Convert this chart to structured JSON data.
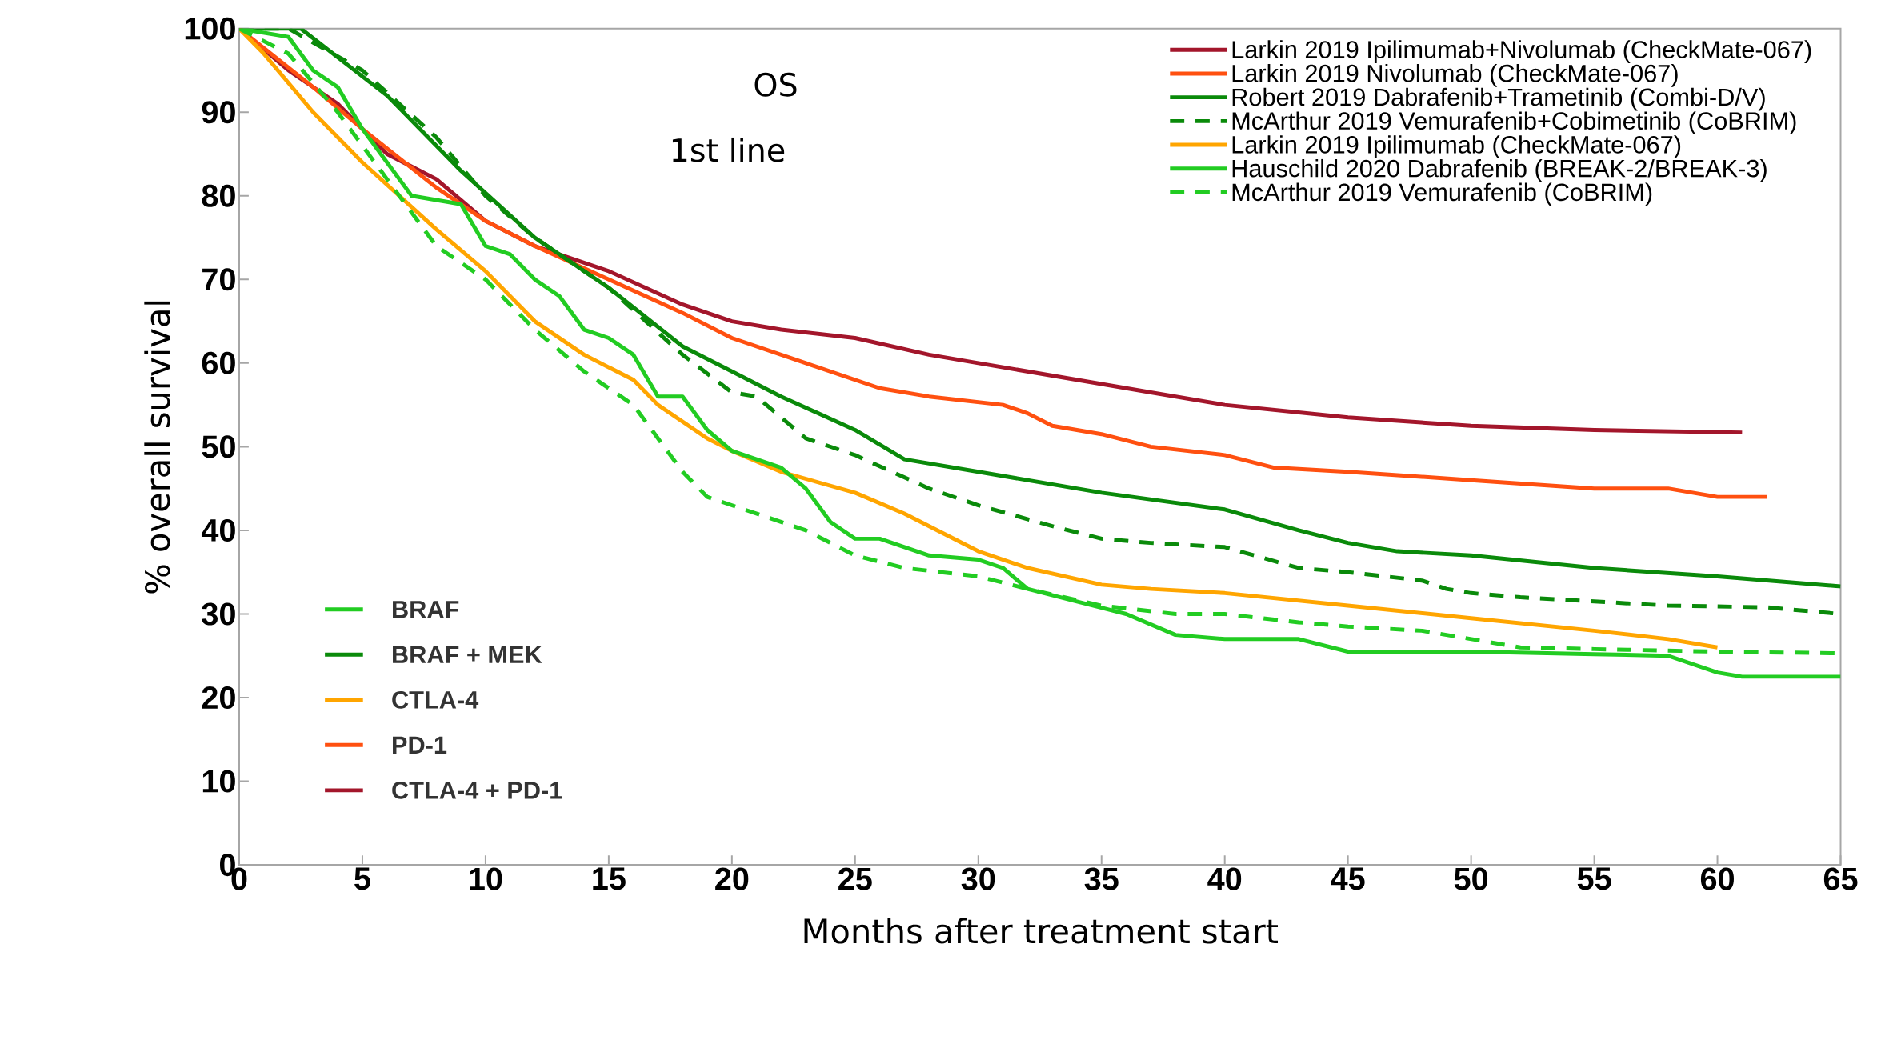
{
  "chart_data": {
    "type": "line",
    "xlabel": "Months after treatment start",
    "ylabel": "% overall survival",
    "xlim": [
      0,
      65
    ],
    "ylim": [
      0,
      100
    ],
    "xticks": [
      0,
      5,
      10,
      15,
      20,
      25,
      30,
      35,
      40,
      45,
      50,
      55,
      60,
      65
    ],
    "yticks": [
      0,
      10,
      20,
      30,
      40,
      50,
      60,
      70,
      80,
      90,
      100
    ],
    "grid": false,
    "legend": "top right",
    "marker": "none",
    "annotations": [
      "OS",
      "1st line",
      "BRAF",
      "BRAF + MEK",
      "CTLA-4",
      "PD-1",
      "CTLA-4 + PD-1"
    ],
    "series": [
      {
        "name": "Larkin 2019 Ipilimumab+Nivolumab (CheckMate-067)",
        "color": "#a3162b",
        "line_style": "solid",
        "x": [
          0,
          2,
          4,
          6,
          8,
          10,
          12,
          15,
          18,
          20,
          22,
          25,
          28,
          30,
          35,
          37,
          40,
          45,
          50,
          55,
          61
        ],
        "values": [
          100,
          95,
          91,
          85,
          82,
          77,
          74,
          71,
          67,
          65,
          64,
          63,
          61,
          60,
          57.5,
          56.5,
          55,
          53.5,
          52.5,
          52,
          51.7
        ]
      },
      {
        "name": "Larkin 2019 Nivolumab (CheckMate-067)",
        "color": "#ff5010",
        "line_style": "solid",
        "x": [
          0,
          3,
          5,
          8,
          10,
          12,
          15,
          18,
          20,
          23,
          26,
          28,
          31,
          32,
          33,
          35,
          37,
          40,
          42,
          45,
          50,
          55,
          58,
          60,
          62
        ],
        "values": [
          100,
          93,
          88,
          81,
          77,
          74,
          70,
          66,
          63,
          60,
          57,
          56,
          55,
          54,
          52.5,
          51.5,
          50,
          49,
          47.5,
          47,
          46,
          45,
          45,
          44,
          44
        ]
      },
      {
        "name": "Robert 2019 Dabrafenib+Trametinib (Combi-D/V)",
        "color": "#0a8a0a",
        "line_style": "solid",
        "x": [
          0,
          2.5,
          6,
          9,
          12,
          15,
          18,
          20,
          22,
          25,
          27,
          30,
          35,
          40,
          43,
          45,
          47,
          50,
          55,
          60,
          65
        ],
        "values": [
          100,
          100,
          92,
          83,
          75,
          69,
          62,
          59,
          56,
          52,
          48.5,
          47,
          44.5,
          42.5,
          40,
          38.5,
          37.5,
          37,
          35.5,
          34.5,
          33.3
        ]
      },
      {
        "name": "McArthur 2019 Vemurafenib+Cobimetinib (CoBRIM)",
        "color": "#0a8a0a",
        "line_style": "dashed",
        "x": [
          0,
          2,
          5,
          8,
          10,
          12,
          15,
          18,
          20,
          21,
          23,
          25,
          28,
          30,
          33,
          35,
          37,
          40,
          43,
          45,
          48,
          49,
          50,
          52,
          55,
          58,
          62,
          65
        ],
        "values": [
          100,
          100,
          95,
          87,
          80,
          75,
          69,
          61,
          56.5,
          56,
          51,
          49,
          45,
          43,
          40.5,
          39,
          38.5,
          38,
          35.5,
          35,
          34,
          33,
          32.5,
          32,
          31.5,
          31,
          30.8,
          30
        ]
      },
      {
        "name": "Larkin 2019 Ipilimumab (CheckMate-067)",
        "color": "#ffa500",
        "line_style": "solid",
        "x": [
          0,
          1,
          3,
          5,
          8,
          10,
          12,
          14,
          16,
          17,
          19,
          20,
          22,
          25,
          27,
          30,
          32,
          35,
          37,
          40,
          45,
          50,
          55,
          58,
          60
        ],
        "values": [
          100,
          97,
          90,
          84,
          76,
          71,
          65,
          61,
          58,
          55,
          51,
          49.5,
          47,
          44.5,
          42,
          37.5,
          35.5,
          33.5,
          33,
          32.5,
          31,
          29.5,
          28,
          27,
          26
        ]
      },
      {
        "name": "Hauschild 2020 Dabrafenib (BREAK-2/BREAK-3)",
        "color": "#22cc22",
        "line_style": "solid",
        "x": [
          0,
          2,
          3,
          4,
          5,
          6,
          7,
          8,
          9,
          10,
          11,
          12,
          13,
          14,
          15,
          16,
          17,
          18,
          19,
          20,
          22,
          23,
          24,
          25,
          26,
          28,
          30,
          31,
          32,
          34,
          36,
          38,
          40,
          43,
          45,
          50,
          55,
          58,
          60,
          61,
          65
        ],
        "values": [
          100,
          99,
          95,
          93,
          88,
          84,
          80,
          79.5,
          79,
          74,
          73,
          70,
          68,
          64,
          63,
          61,
          56,
          56,
          52,
          49.5,
          47.5,
          45,
          41,
          39,
          39,
          37,
          36.5,
          35.5,
          33,
          31.5,
          30,
          27.5,
          27,
          27,
          25.5,
          25.5,
          25.2,
          25,
          23,
          22.5,
          22.5
        ]
      },
      {
        "name": "McArthur 2019 Vemurafenib (CoBRIM)",
        "color": "#22cc22",
        "line_style": "dashed",
        "x": [
          0,
          2,
          4,
          6,
          8,
          10,
          12,
          14,
          16,
          18,
          19,
          20,
          23,
          25,
          27,
          30,
          32,
          35,
          38,
          40,
          43,
          45,
          48,
          50,
          52,
          55,
          60,
          65
        ],
        "values": [
          100,
          97,
          90,
          82,
          74,
          70,
          64,
          59,
          55,
          47,
          44,
          43,
          40,
          37,
          35.5,
          34.5,
          33,
          31,
          30,
          30,
          29,
          28.5,
          28,
          27,
          26,
          25.8,
          25.5,
          25.3
        ]
      }
    ]
  }
}
